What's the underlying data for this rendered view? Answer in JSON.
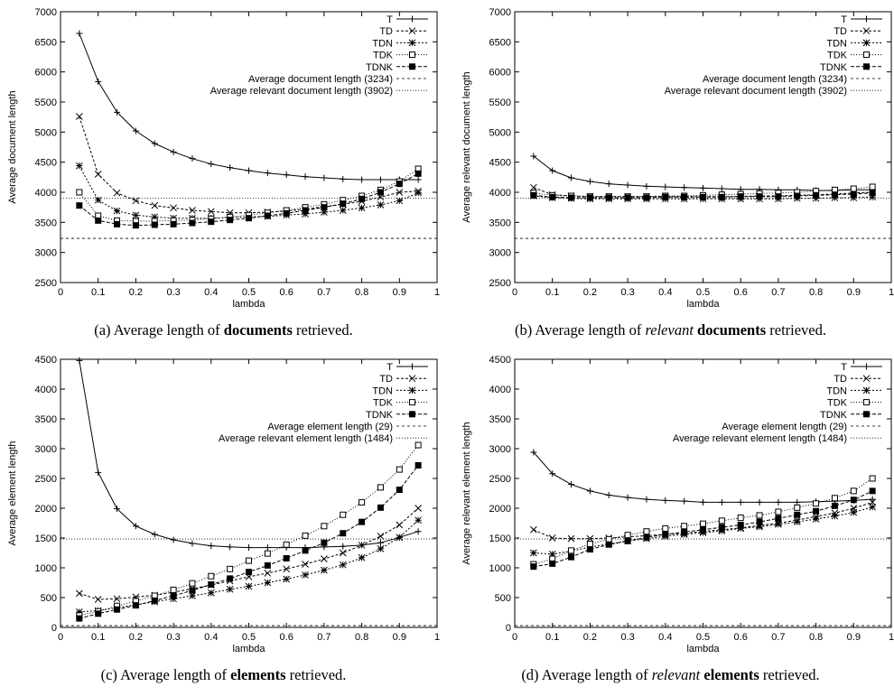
{
  "figure": {
    "captions": [
      {
        "pre": "(a) Average length of ",
        "em": "",
        "mid": "",
        "bold": "documents",
        "post": " retrieved."
      },
      {
        "pre": "(b) Average length of ",
        "em": "relevant",
        "mid": " ",
        "bold": "documents",
        "post": " retrieved."
      },
      {
        "pre": "(c) Average length of ",
        "em": "",
        "mid": "",
        "bold": "elements",
        "post": " retrieved."
      },
      {
        "pre": "(d) Average length of ",
        "em": "relevant",
        "mid": " ",
        "bold": "elements",
        "post": " retrieved."
      }
    ]
  },
  "chart_data": [
    {
      "type": "line",
      "xlabel": "lambda",
      "ylabel": "Average document length",
      "xlim": [
        0,
        1
      ],
      "ylim": [
        2500,
        7000
      ],
      "xticks": [
        "0",
        "0.1",
        "0.2",
        "0.3",
        "0.4",
        "0.5",
        "0.6",
        "0.7",
        "0.8",
        "0.9",
        "1"
      ],
      "yticks": [
        "2500",
        "3000",
        "3500",
        "4000",
        "4500",
        "5000",
        "5500",
        "6000",
        "6500",
        "7000"
      ],
      "legend_position": "top-right",
      "x": [
        0.05,
        0.1,
        0.15,
        0.2,
        0.25,
        0.3,
        0.35,
        0.4,
        0.45,
        0.5,
        0.55,
        0.6,
        0.65,
        0.7,
        0.75,
        0.8,
        0.85,
        0.9,
        0.95
      ],
      "series": [
        {
          "name": "T",
          "marker": "plus",
          "values": [
            6640,
            5840,
            5330,
            5020,
            4810,
            4670,
            4560,
            4470,
            4410,
            4360,
            4320,
            4290,
            4260,
            4240,
            4220,
            4210,
            4210,
            4210,
            4210
          ]
        },
        {
          "name": "TD",
          "marker": "x",
          "values": [
            5260,
            4300,
            3990,
            3860,
            3780,
            3740,
            3700,
            3680,
            3660,
            3660,
            3670,
            3690,
            3720,
            3760,
            3800,
            3850,
            3920,
            4000,
            4020
          ]
        },
        {
          "name": "TDN",
          "marker": "star",
          "values": [
            4440,
            3870,
            3690,
            3620,
            3590,
            3570,
            3570,
            3570,
            3580,
            3590,
            3600,
            3620,
            3640,
            3670,
            3700,
            3740,
            3790,
            3860,
            3990
          ]
        },
        {
          "name": "TDK",
          "marker": "square",
          "values": [
            4000,
            3610,
            3530,
            3520,
            3520,
            3530,
            3540,
            3560,
            3590,
            3620,
            3660,
            3700,
            3750,
            3800,
            3870,
            3940,
            4040,
            4180,
            4390
          ]
        },
        {
          "name": "TDNK",
          "marker": "filled-square",
          "values": [
            3780,
            3530,
            3470,
            3450,
            3460,
            3470,
            3490,
            3510,
            3540,
            3570,
            3610,
            3650,
            3700,
            3750,
            3810,
            3890,
            4000,
            4140,
            4310
          ]
        }
      ],
      "reference_lines": [
        {
          "name": "Average document length (3234)",
          "value": 3234
        },
        {
          "name": "Average relevant document length (3902)",
          "value": 3902
        }
      ]
    },
    {
      "type": "line",
      "xlabel": "lambda",
      "ylabel": "Average relevant document length",
      "xlim": [
        0,
        1
      ],
      "ylim": [
        2500,
        7000
      ],
      "xticks": [
        "0",
        "0.1",
        "0.2",
        "0.3",
        "0.4",
        "0.5",
        "0.6",
        "0.7",
        "0.8",
        "0.9",
        "1"
      ],
      "yticks": [
        "2500",
        "3000",
        "3500",
        "4000",
        "4500",
        "5000",
        "5500",
        "6000",
        "6500",
        "7000"
      ],
      "legend_position": "top-right",
      "x": [
        0.05,
        0.1,
        0.15,
        0.2,
        0.25,
        0.3,
        0.35,
        0.4,
        0.45,
        0.5,
        0.55,
        0.6,
        0.65,
        0.7,
        0.75,
        0.8,
        0.85,
        0.9,
        0.95
      ],
      "series": [
        {
          "name": "T",
          "marker": "plus",
          "values": [
            4600,
            4360,
            4240,
            4180,
            4140,
            4120,
            4100,
            4090,
            4080,
            4070,
            4060,
            4050,
            4050,
            4040,
            4040,
            4030,
            4030,
            4040,
            4040
          ]
        },
        {
          "name": "TD",
          "marker": "x",
          "values": [
            4080,
            3960,
            3940,
            3930,
            3930,
            3930,
            3930,
            3930,
            3930,
            3930,
            3930,
            3930,
            3940,
            3940,
            3950,
            3960,
            3970,
            3990,
            4000
          ]
        },
        {
          "name": "TDN",
          "marker": "star",
          "values": [
            3940,
            3910,
            3900,
            3890,
            3890,
            3890,
            3890,
            3890,
            3890,
            3890,
            3890,
            3890,
            3890,
            3890,
            3900,
            3900,
            3910,
            3910,
            3920
          ]
        },
        {
          "name": "TDK",
          "marker": "square",
          "values": [
            3990,
            3950,
            3940,
            3930,
            3930,
            3930,
            3930,
            3940,
            3940,
            3950,
            3960,
            3970,
            3980,
            3990,
            4000,
            4020,
            4040,
            4060,
            4090
          ]
        },
        {
          "name": "TDNK",
          "marker": "filled-square",
          "values": [
            3950,
            3920,
            3910,
            3910,
            3910,
            3910,
            3910,
            3920,
            3920,
            3920,
            3920,
            3930,
            3930,
            3930,
            3940,
            3950,
            3960,
            3970,
            3990
          ]
        }
      ],
      "reference_lines": [
        {
          "name": "Average document length (3234)",
          "value": 3234
        },
        {
          "name": "Average relevant document length (3902)",
          "value": 3902
        }
      ]
    },
    {
      "type": "line",
      "xlabel": "lambda",
      "ylabel": "Average element length",
      "xlim": [
        0,
        1
      ],
      "ylim": [
        0,
        4500
      ],
      "xticks": [
        "0",
        "0.1",
        "0.2",
        "0.3",
        "0.4",
        "0.5",
        "0.6",
        "0.7",
        "0.8",
        "0.9",
        "1"
      ],
      "yticks": [
        "0",
        "500",
        "1000",
        "1500",
        "2000",
        "2500",
        "3000",
        "3500",
        "4000",
        "4500"
      ],
      "legend_position": "top-right",
      "x": [
        0.05,
        0.1,
        0.15,
        0.2,
        0.25,
        0.3,
        0.35,
        0.4,
        0.45,
        0.5,
        0.55,
        0.6,
        0.65,
        0.7,
        0.75,
        0.8,
        0.85,
        0.9,
        0.95
      ],
      "series": [
        {
          "name": "T",
          "marker": "plus",
          "values": [
            4480,
            2600,
            1990,
            1700,
            1560,
            1470,
            1410,
            1370,
            1350,
            1340,
            1340,
            1340,
            1340,
            1350,
            1360,
            1380,
            1420,
            1510,
            1610
          ]
        },
        {
          "name": "TD",
          "marker": "x",
          "values": [
            570,
            470,
            480,
            510,
            540,
            590,
            650,
            710,
            780,
            850,
            910,
            980,
            1060,
            1150,
            1250,
            1380,
            1530,
            1720,
            2000
          ]
        },
        {
          "name": "TDN",
          "marker": "star",
          "values": [
            260,
            280,
            330,
            380,
            430,
            480,
            530,
            580,
            640,
            690,
            750,
            810,
            880,
            960,
            1050,
            1170,
            1320,
            1510,
            1800
          ]
        },
        {
          "name": "TDK",
          "marker": "square",
          "values": [
            200,
            270,
            360,
            440,
            530,
            630,
            740,
            860,
            980,
            1120,
            1240,
            1390,
            1540,
            1700,
            1890,
            2100,
            2350,
            2650,
            3060
          ]
        },
        {
          "name": "TDNK",
          "marker": "filled-square",
          "values": [
            150,
            230,
            300,
            370,
            450,
            530,
            620,
            720,
            820,
            930,
            1040,
            1160,
            1290,
            1420,
            1580,
            1770,
            2010,
            2310,
            2720
          ]
        }
      ],
      "reference_lines": [
        {
          "name": "Average element length (29)",
          "value": 29
        },
        {
          "name": "Average relevant element length (1484)",
          "value": 1484
        }
      ]
    },
    {
      "type": "line",
      "xlabel": "lambda",
      "ylabel": "Average relevant element length",
      "xlim": [
        0,
        1
      ],
      "ylim": [
        0,
        4500
      ],
      "xticks": [
        "0",
        "0.1",
        "0.2",
        "0.3",
        "0.4",
        "0.5",
        "0.6",
        "0.7",
        "0.8",
        "0.9",
        "1"
      ],
      "yticks": [
        "0",
        "500",
        "1000",
        "1500",
        "2000",
        "2500",
        "3000",
        "3500",
        "4000",
        "4500"
      ],
      "legend_position": "top-right",
      "x": [
        0.05,
        0.1,
        0.15,
        0.2,
        0.25,
        0.3,
        0.35,
        0.4,
        0.45,
        0.5,
        0.55,
        0.6,
        0.65,
        0.7,
        0.75,
        0.8,
        0.85,
        0.9,
        0.95
      ],
      "series": [
        {
          "name": "T",
          "marker": "plus",
          "values": [
            2940,
            2580,
            2400,
            2290,
            2220,
            2180,
            2150,
            2130,
            2120,
            2100,
            2100,
            2100,
            2100,
            2100,
            2100,
            2110,
            2120,
            2130,
            2150
          ]
        },
        {
          "name": "TD",
          "marker": "x",
          "values": [
            1640,
            1500,
            1490,
            1490,
            1500,
            1520,
            1540,
            1560,
            1580,
            1610,
            1640,
            1670,
            1710,
            1750,
            1800,
            1860,
            1920,
            2000,
            2100
          ]
        },
        {
          "name": "TDN",
          "marker": "star",
          "values": [
            1250,
            1230,
            1280,
            1350,
            1400,
            1450,
            1490,
            1530,
            1560,
            1590,
            1620,
            1660,
            1690,
            1730,
            1770,
            1820,
            1870,
            1930,
            2020
          ]
        },
        {
          "name": "TDK",
          "marker": "square",
          "values": [
            1060,
            1150,
            1290,
            1400,
            1480,
            1550,
            1610,
            1660,
            1700,
            1740,
            1790,
            1840,
            1880,
            1940,
            2010,
            2080,
            2170,
            2290,
            2500
          ]
        },
        {
          "name": "TDNK",
          "marker": "filled-square",
          "values": [
            1020,
            1070,
            1180,
            1310,
            1390,
            1450,
            1510,
            1560,
            1600,
            1640,
            1680,
            1720,
            1770,
            1830,
            1890,
            1950,
            2040,
            2140,
            2290
          ]
        }
      ],
      "reference_lines": [
        {
          "name": "Average element length (29)",
          "value": 29
        },
        {
          "name": "Average relevant element length (1484)",
          "value": 1484
        }
      ]
    }
  ]
}
